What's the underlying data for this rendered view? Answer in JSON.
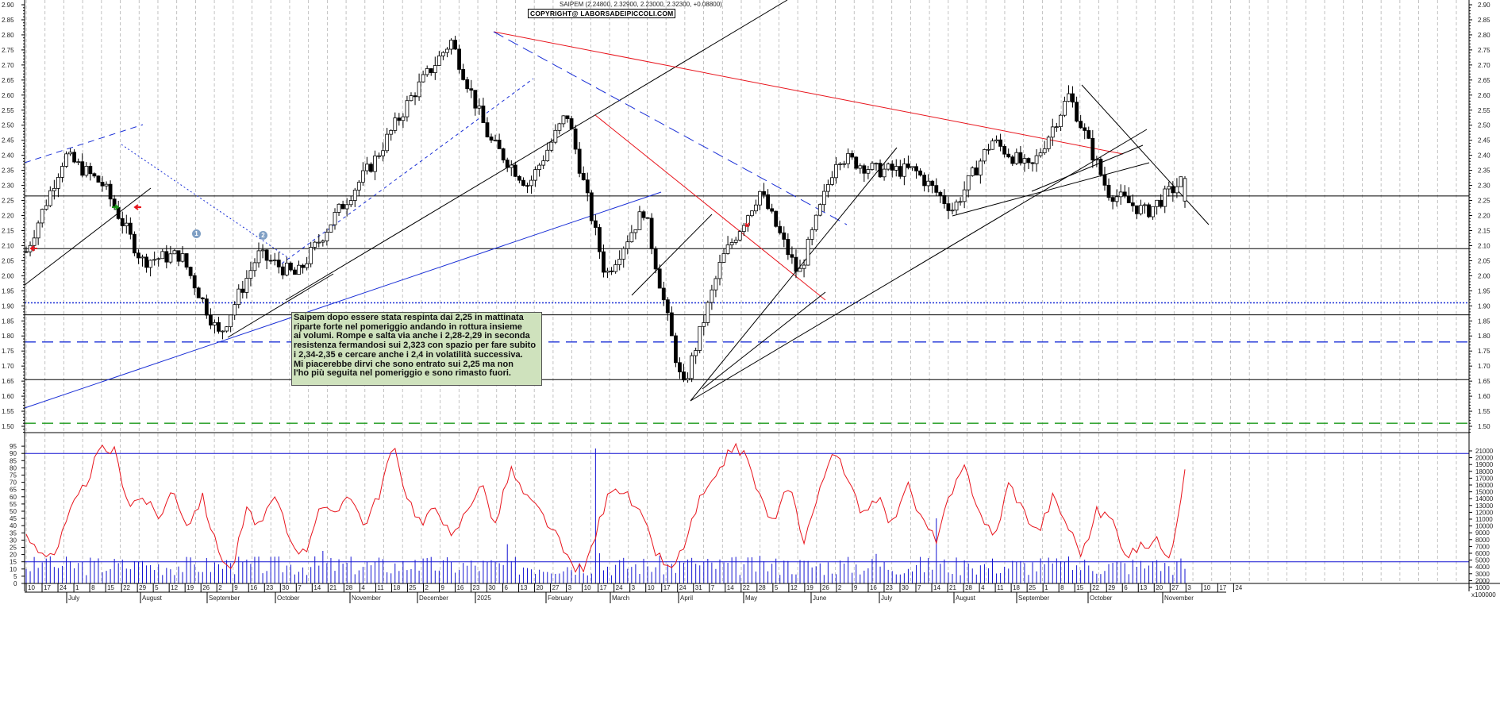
{
  "header": {
    "title": "SAIPEM (2.24800, 2.32900, 2.23000, 2.32300, +0.08800)",
    "copyright": "COPYRIGHT@ LABORSADEIPICCOLI.COM"
  },
  "annotation": {
    "lines": [
      "Saipem dopo essere stata respinta dai 2,25 in mattinata",
      "riparte forte nel pomeriggio andando in rottura insieme",
      "ai volumi. Rompe e salta via anche i 2,28-2,29 in seconda",
      "resistenza fermandosi sui 2,323 con spazio per fare subito",
      "i 2,34-2,35 e cercare anche i 2,4 in volatilità successiva.",
      "Mi piacerebbe dirvi che sono entrato sui 2,25 ma non",
      "l'ho più seguita nel pomeriggio e sono rimasto fuori."
    ]
  },
  "markers": [
    {
      "label": "1",
      "x": 247,
      "y": 294
    },
    {
      "label": "2",
      "x": 331,
      "y": 296
    }
  ],
  "colors": {
    "candle": "#000000",
    "trend_red": "#e8141c",
    "trend_blue": "#1a2fd6",
    "support_green": "#1a9a1a",
    "oscillator": "#e8141c",
    "volume": "#1414d2",
    "grid": "#b4b4b4",
    "note_bg": "#cfe2bd"
  },
  "chart_data": [
    {
      "type": "candlestick",
      "title": "SAIPEM (2.24800, 2.32900, 2.23000, 2.32300, +0.08800)",
      "last_bar": {
        "open": 2.248,
        "high": 2.329,
        "low": 2.23,
        "close": 2.323,
        "change": 0.088
      },
      "ylim": [
        1.5,
        2.9
      ],
      "y_ticks": [
        2.9,
        2.85,
        2.8,
        2.75,
        2.7,
        2.65,
        2.6,
        2.55,
        2.5,
        2.45,
        2.4,
        2.35,
        2.3,
        2.25,
        2.2,
        2.15,
        2.1,
        2.05,
        2.0,
        1.95,
        1.9,
        1.85,
        1.8,
        1.75,
        1.7,
        1.65,
        1.6,
        1.55,
        1.5
      ],
      "grid": true,
      "horizontal_levels": [
        {
          "price": 2.265,
          "style": "solid",
          "color": "#000000"
        },
        {
          "price": 2.09,
          "style": "solid",
          "color": "#000000"
        },
        {
          "price": 1.91,
          "style": "dotted",
          "color": "#1a2fd6"
        },
        {
          "price": 1.87,
          "style": "solid",
          "color": "#000000"
        },
        {
          "price": 1.78,
          "style": "dashed",
          "color": "#1a2fd6"
        },
        {
          "price": 1.655,
          "style": "solid",
          "color": "#000000"
        },
        {
          "price": 1.51,
          "style": "dashed",
          "color": "#1a9a1a"
        }
      ],
      "closes_approx": [
        {
          "date": "2024-06",
          "close": 2.08
        },
        {
          "date": "2024-07-08",
          "close": 2.4
        },
        {
          "date": "2024-07-29",
          "close": 2.3
        },
        {
          "date": "2024-08-05",
          "close": 2.05
        },
        {
          "date": "2024-08-26",
          "close": 2.07
        },
        {
          "date": "2024-09-09",
          "close": 1.8
        },
        {
          "date": "2024-09-23",
          "close": 2.07
        },
        {
          "date": "2024-10-14",
          "close": 2.0
        },
        {
          "date": "2024-11-04",
          "close": 2.2
        },
        {
          "date": "2024-11-25",
          "close": 2.38
        },
        {
          "date": "2024-12-16",
          "close": 2.6
        },
        {
          "date": "2025-01-08",
          "close": 2.78
        },
        {
          "date": "2025-01-20",
          "close": 2.45
        },
        {
          "date": "2025-02-03",
          "close": 2.3
        },
        {
          "date": "2025-02-24",
          "close": 2.54
        },
        {
          "date": "2025-03-03",
          "close": 2.0
        },
        {
          "date": "2025-03-17",
          "close": 2.22
        },
        {
          "date": "2025-04-07",
          "close": 1.62
        },
        {
          "date": "2025-04-28",
          "close": 2.05
        },
        {
          "date": "2025-05-12",
          "close": 2.28
        },
        {
          "date": "2025-05-26",
          "close": 2.0
        },
        {
          "date": "2025-06-16",
          "close": 2.4
        },
        {
          "date": "2025-07-14",
          "close": 2.35
        },
        {
          "date": "2025-07-28",
          "close": 2.35
        },
        {
          "date": "2025-08-04",
          "close": 2.22
        },
        {
          "date": "2025-08-25",
          "close": 2.45
        },
        {
          "date": "2025-09-15",
          "close": 2.35
        },
        {
          "date": "2025-10-06",
          "close": 2.6
        },
        {
          "date": "2025-10-20",
          "close": 2.28
        },
        {
          "date": "2025-11-07",
          "close": 2.21
        },
        {
          "date": "2025-11-10",
          "close": 2.323
        }
      ]
    },
    {
      "type": "line+bar",
      "title": "Oscillator (red) and volume (blue bars)",
      "left_ylim": [
        0,
        100
      ],
      "left_ticks": [
        95,
        90,
        85,
        80,
        75,
        70,
        65,
        60,
        55,
        50,
        45,
        40,
        35,
        30,
        25,
        20,
        15,
        10,
        5,
        0
      ],
      "right_ticks": [
        21000,
        20000,
        19000,
        18000,
        17000,
        16000,
        15000,
        14000,
        13000,
        12000,
        11000,
        10000,
        9000,
        8000,
        7000,
        6000,
        5000,
        4000,
        3000,
        2000,
        1000
      ],
      "right_unit": "x100000",
      "levels": [
        90,
        15
      ],
      "oscillator_approx": [
        32,
        22,
        21,
        49,
        68,
        92,
        92,
        55,
        60,
        45,
        65,
        40,
        60,
        25,
        8,
        50,
        40,
        60,
        30,
        20,
        55,
        45,
        65,
        40,
        60,
        95,
        60,
        40,
        55,
        30,
        50,
        70,
        40,
        80,
        60,
        50,
        35,
        15,
        8,
        40,
        70,
        60,
        45,
        20,
        8,
        30,
        60,
        70,
        95,
        90,
        60,
        40,
        70,
        30,
        60,
        95,
        70,
        50,
        60,
        40,
        70,
        45,
        30,
        60,
        80,
        50,
        30,
        70,
        50,
        35,
        60,
        40,
        20,
        50,
        45,
        20,
        25,
        30,
        20,
        75
      ],
      "volume_spike": {
        "date": "2025-02-24",
        "value": 20000
      }
    }
  ],
  "x_axis": {
    "day_ticks": [
      "10",
      "17",
      "24",
      "1",
      "8",
      "15",
      "22",
      "29",
      "5",
      "12",
      "19",
      "26",
      "2",
      "9",
      "16",
      "23",
      "30",
      "7",
      "14",
      "21",
      "28",
      "4",
      "11",
      "18",
      "25",
      "2",
      "9",
      "16",
      "23",
      "30",
      "6",
      "13",
      "20",
      "27",
      "3",
      "10",
      "17",
      "24",
      "3",
      "10",
      "17",
      "24",
      "31",
      "7",
      "14",
      "22",
      "28",
      "5",
      "12",
      "19",
      "26",
      "2",
      "9",
      "16",
      "23",
      "30",
      "7",
      "14",
      "21",
      "28",
      "4",
      "11",
      "18",
      "25",
      "1",
      "8",
      "15",
      "22",
      "29",
      "6",
      "13",
      "20",
      "27",
      "3",
      "10",
      "17",
      "24"
    ],
    "months": [
      {
        "label": "July",
        "x": 86
      },
      {
        "label": "August",
        "x": 179
      },
      {
        "label": "September",
        "x": 263
      },
      {
        "label": "October",
        "x": 349
      },
      {
        "label": "November",
        "x": 443
      },
      {
        "label": "December",
        "x": 528
      },
      {
        "label": "2025",
        "x": 601
      },
      {
        "label": "February",
        "x": 690
      },
      {
        "label": "March",
        "x": 771
      },
      {
        "label": "April",
        "x": 857
      },
      {
        "label": "May",
        "x": 939
      },
      {
        "label": "June",
        "x": 1024
      },
      {
        "label": "July",
        "x": 1110
      },
      {
        "label": "August",
        "x": 1204
      },
      {
        "label": "September",
        "x": 1283
      },
      {
        "label": "October",
        "x": 1373
      },
      {
        "label": "November",
        "x": 1467
      }
    ]
  }
}
